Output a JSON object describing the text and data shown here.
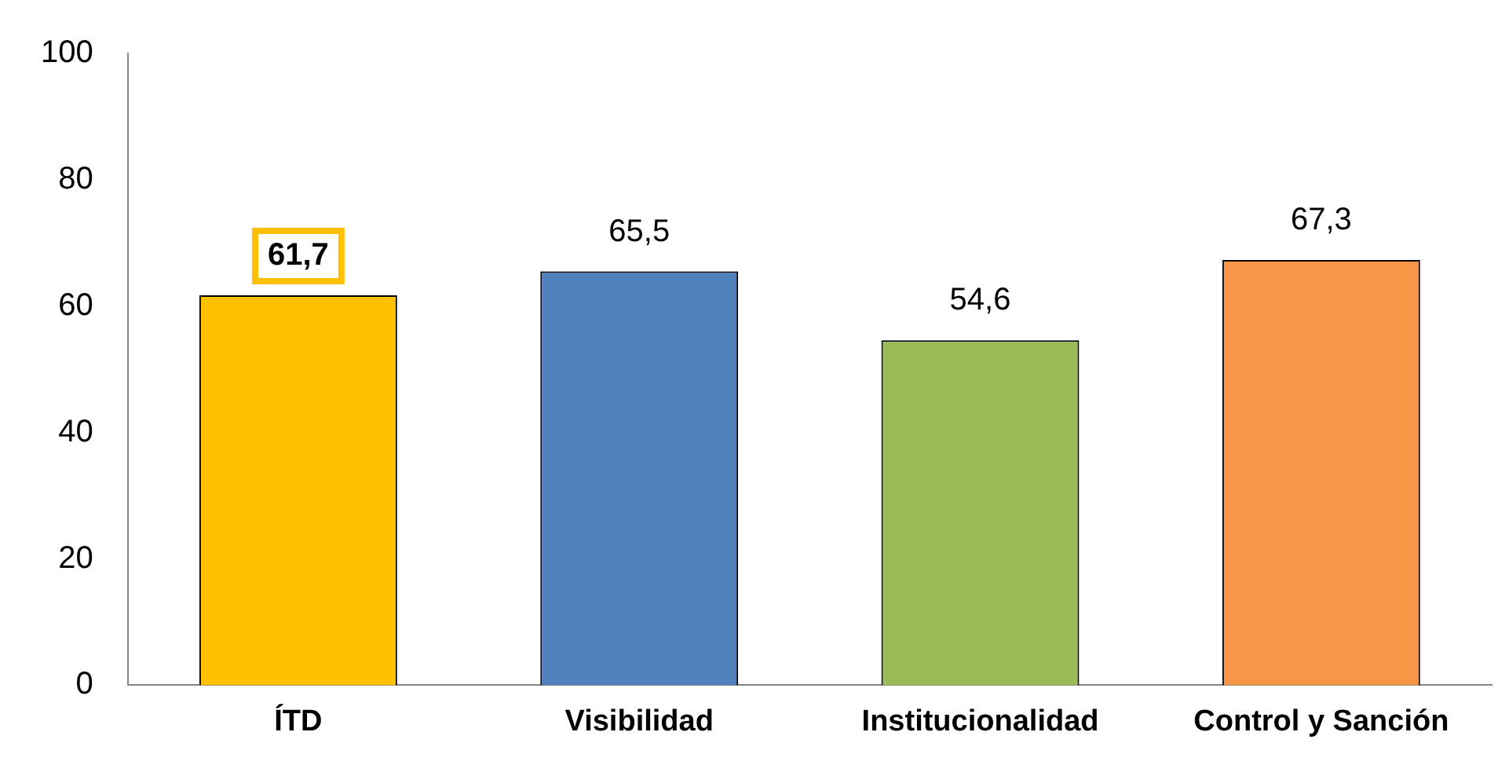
{
  "chart_data": {
    "type": "bar",
    "categories": [
      "ÍTD",
      "Visibilidad",
      "Institucionalidad",
      "Control y Sanción"
    ],
    "values": [
      61.7,
      65.5,
      54.6,
      67.3
    ],
    "colors": [
      "#ffc000",
      "#4f81bd",
      "#9bbb59",
      "#f79646"
    ],
    "value_labels": [
      "61,7",
      "65,5",
      "54,6",
      "67,3"
    ],
    "ylim": [
      0,
      100
    ],
    "yticks": [
      0,
      20,
      40,
      60,
      80,
      100
    ],
    "grid": false,
    "legend": false
  }
}
